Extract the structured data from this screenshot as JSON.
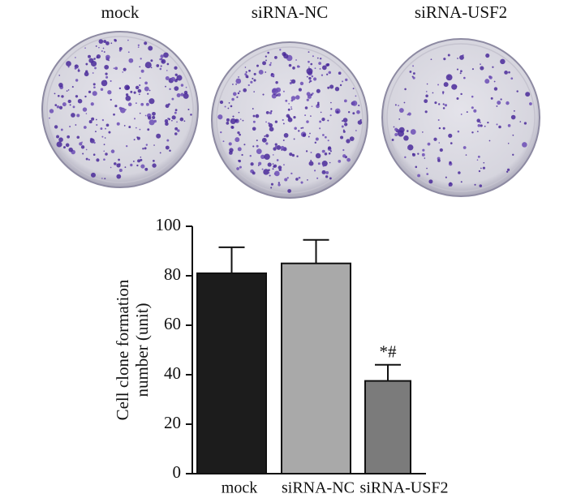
{
  "chart_data": {
    "type": "bar",
    "categories": [
      "mock",
      "siRNA-NC",
      "siRNA-USF2"
    ],
    "values": [
      81,
      85,
      37.5
    ],
    "errors": [
      10.5,
      9.5,
      6.5
    ],
    "colors": [
      "#1c1c1c",
      "#a9a9a9",
      "#7b7b7b"
    ],
    "ylabel": [
      "Cell clone formation",
      "number (unit)"
    ],
    "ylim": [
      0,
      100
    ],
    "yticks": [
      0,
      20,
      40,
      60,
      80,
      100
    ],
    "annotations": [
      {
        "text": "*#",
        "category": "siRNA-USF2"
      }
    ]
  }
}
